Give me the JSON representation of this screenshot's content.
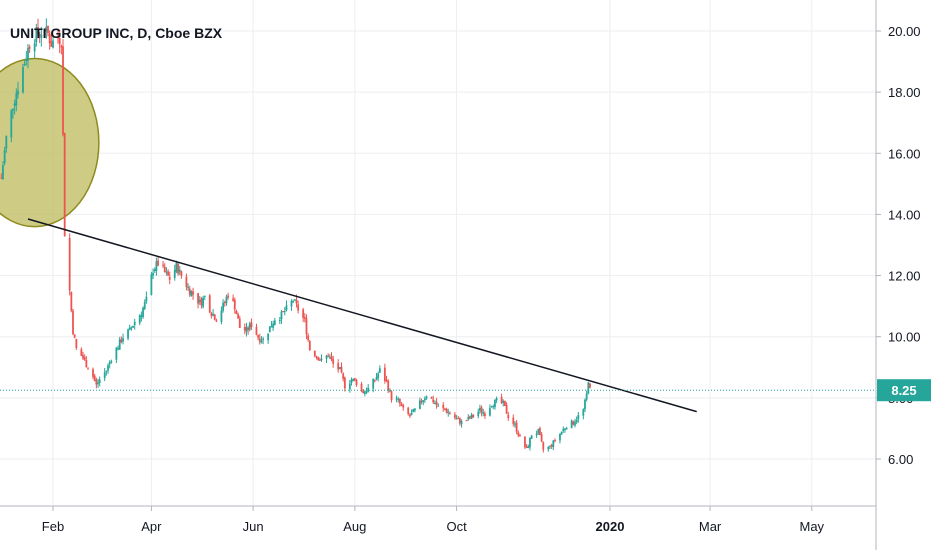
{
  "chart_data": {
    "type": "candlestick",
    "title": "UNITI GROUP INC, D, Cboe BZX",
    "y_ticks": [
      "6.00",
      "8.00",
      "10.00",
      "12.00",
      "14.00",
      "16.00",
      "18.00",
      "20.00"
    ],
    "y_values": [
      6,
      8,
      10,
      12,
      14,
      16,
      18,
      20
    ],
    "ylim": [
      4.5,
      21.0
    ],
    "x_ticks": [
      "Feb",
      "Apr",
      "Jun",
      "Aug",
      "Oct",
      "2020",
      "Mar",
      "May"
    ],
    "x_tick_dates": [
      "2019-02-01",
      "2019-04-01",
      "2019-06-01",
      "2019-08-01",
      "2019-10-01",
      "2020-01-01",
      "2020-03-01",
      "2020-05-01"
    ],
    "last_price": {
      "label": "8.25",
      "value": 8.25,
      "color": "#26a69a"
    },
    "up_color": "#26a69a",
    "down_color": "#ef5350",
    "trendline": {
      "color": "#131722",
      "start": {
        "date": "2019-01-17",
        "value": 13.85
      },
      "end": {
        "date": "2020-02-22",
        "value": 7.55
      }
    },
    "ellipse_annotation": {
      "fill": "#bdb95c",
      "stroke": "#8f8a1e",
      "center_date": "2019-01-21",
      "center_value": 16.35,
      "width_days": 77,
      "height_value": 5.5
    },
    "series_path": [
      [
        "2019-01-01",
        15.2
      ],
      [
        "2019-01-04",
        16.5
      ],
      [
        "2019-01-08",
        17.6
      ],
      [
        "2019-01-11",
        18.2
      ],
      [
        "2019-01-15",
        19.0
      ],
      [
        "2019-01-18",
        19.6
      ],
      [
        "2019-01-22",
        19.9
      ],
      [
        "2019-01-25",
        20.0
      ],
      [
        "2019-01-29",
        19.9
      ],
      [
        "2019-01-31",
        19.6
      ],
      [
        "2019-02-04",
        19.8
      ],
      [
        "2019-02-06",
        19.7
      ],
      [
        "2019-02-08",
        13.4
      ],
      [
        "2019-02-11",
        11.5
      ],
      [
        "2019-02-13",
        10.2
      ],
      [
        "2019-02-15",
        9.6
      ],
      [
        "2019-02-19",
        9.3
      ],
      [
        "2019-02-21",
        9.1
      ],
      [
        "2019-02-25",
        8.7
      ],
      [
        "2019-02-27",
        8.4
      ],
      [
        "2019-03-01",
        8.6
      ],
      [
        "2019-03-05",
        8.9
      ],
      [
        "2019-03-08",
        9.3
      ],
      [
        "2019-03-12",
        9.7
      ],
      [
        "2019-03-15",
        10.0
      ],
      [
        "2019-03-19",
        10.2
      ],
      [
        "2019-03-22",
        10.5
      ],
      [
        "2019-03-26",
        10.8
      ],
      [
        "2019-03-29",
        11.2
      ],
      [
        "2019-04-02",
        12.2
      ],
      [
        "2019-04-05",
        12.4
      ],
      [
        "2019-04-09",
        12.1
      ],
      [
        "2019-04-12",
        11.9
      ],
      [
        "2019-04-16",
        12.3
      ],
      [
        "2019-04-19",
        12.0
      ],
      [
        "2019-04-23",
        11.6
      ],
      [
        "2019-04-26",
        11.4
      ],
      [
        "2019-04-30",
        11.1
      ],
      [
        "2019-05-03",
        11.3
      ],
      [
        "2019-05-07",
        10.8
      ],
      [
        "2019-05-10",
        10.6
      ],
      [
        "2019-05-14",
        11.0
      ],
      [
        "2019-05-17",
        11.4
      ],
      [
        "2019-05-21",
        11.0
      ],
      [
        "2019-05-24",
        10.3
      ],
      [
        "2019-05-28",
        10.2
      ],
      [
        "2019-05-31",
        10.4
      ],
      [
        "2019-06-04",
        10.0
      ],
      [
        "2019-06-07",
        9.9
      ],
      [
        "2019-06-11",
        10.3
      ],
      [
        "2019-06-14",
        10.6
      ],
      [
        "2019-06-18",
        10.7
      ],
      [
        "2019-06-21",
        10.9
      ],
      [
        "2019-06-25",
        11.2
      ],
      [
        "2019-06-28",
        10.9
      ],
      [
        "2019-07-02",
        10.5
      ],
      [
        "2019-07-05",
        9.6
      ],
      [
        "2019-07-09",
        9.4
      ],
      [
        "2019-07-12",
        9.2
      ],
      [
        "2019-07-16",
        9.4
      ],
      [
        "2019-07-19",
        9.1
      ],
      [
        "2019-07-23",
        8.9
      ],
      [
        "2019-07-26",
        8.4
      ],
      [
        "2019-07-30",
        8.6
      ],
      [
        "2019-08-02",
        8.5
      ],
      [
        "2019-08-06",
        8.2
      ],
      [
        "2019-08-09",
        8.3
      ],
      [
        "2019-08-13",
        8.6
      ],
      [
        "2019-08-16",
        8.9
      ],
      [
        "2019-08-20",
        8.5
      ],
      [
        "2019-08-23",
        8.0
      ],
      [
        "2019-08-27",
        7.9
      ],
      [
        "2019-08-30",
        7.6
      ],
      [
        "2019-09-03",
        7.4
      ],
      [
        "2019-09-06",
        7.6
      ],
      [
        "2019-09-10",
        7.9
      ],
      [
        "2019-09-13",
        8.1
      ],
      [
        "2019-09-17",
        7.9
      ],
      [
        "2019-09-20",
        7.7
      ],
      [
        "2019-09-24",
        7.6
      ],
      [
        "2019-09-27",
        7.5
      ],
      [
        "2019-10-01",
        7.3
      ],
      [
        "2019-10-04",
        7.2
      ],
      [
        "2019-10-08",
        7.3
      ],
      [
        "2019-10-11",
        7.4
      ],
      [
        "2019-10-15",
        7.6
      ],
      [
        "2019-10-18",
        7.5
      ],
      [
        "2019-10-22",
        7.8
      ],
      [
        "2019-10-25",
        7.9
      ],
      [
        "2019-10-29",
        7.8
      ],
      [
        "2019-11-01",
        7.4
      ],
      [
        "2019-11-05",
        7.1
      ],
      [
        "2019-11-08",
        6.7
      ],
      [
        "2019-11-12",
        6.3
      ],
      [
        "2019-11-15",
        6.8
      ],
      [
        "2019-11-19",
        6.9
      ],
      [
        "2019-11-22",
        6.3
      ],
      [
        "2019-11-26",
        6.4
      ],
      [
        "2019-11-29",
        6.6
      ],
      [
        "2019-12-03",
        6.9
      ],
      [
        "2019-12-06",
        7.1
      ],
      [
        "2019-12-10",
        7.2
      ],
      [
        "2019-12-13",
        7.4
      ],
      [
        "2019-12-16",
        7.6
      ],
      [
        "2019-12-18",
        8.1
      ],
      [
        "2019-12-19",
        8.6
      ],
      [
        "2019-12-20",
        8.25
      ]
    ]
  }
}
